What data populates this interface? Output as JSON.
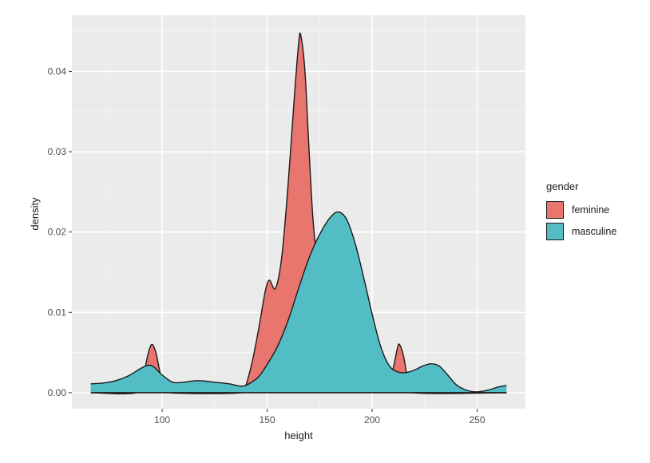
{
  "chart_data": {
    "type": "area",
    "xlabel": "height",
    "ylabel": "density",
    "xlim": [
      57,
      273
    ],
    "ylim": [
      -0.002,
      0.047
    ],
    "xticks": [
      100,
      150,
      200,
      250
    ],
    "yticks": [
      0.0,
      0.01,
      0.02,
      0.03,
      0.04
    ],
    "xtick_labels": [
      "100",
      "150",
      "200",
      "250"
    ],
    "ytick_labels": [
      "0.00",
      "0.01",
      "0.02",
      "0.03",
      "0.04"
    ],
    "grid": true,
    "legend": {
      "title": "gender",
      "position": "right"
    },
    "series": [
      {
        "name": "feminine",
        "color": "#E8766F",
        "points": [
          [
            66,
            0
          ],
          [
            88,
            0
          ],
          [
            91,
            0.002
          ],
          [
            93,
            0.0045
          ],
          [
            95,
            0.006
          ],
          [
            97,
            0.005
          ],
          [
            99,
            0.0025
          ],
          [
            101,
            0.0008
          ],
          [
            103,
            0
          ],
          [
            138,
            0
          ],
          [
            140,
            0.001
          ],
          [
            143,
            0.004
          ],
          [
            146,
            0.008
          ],
          [
            149,
            0.0125
          ],
          [
            151,
            0.014
          ],
          [
            154,
            0.013
          ],
          [
            157,
            0.017
          ],
          [
            160,
            0.026
          ],
          [
            163,
            0.037
          ],
          [
            165,
            0.0435
          ],
          [
            166,
            0.0445
          ],
          [
            168,
            0.04
          ],
          [
            170,
            0.03
          ],
          [
            172,
            0.021
          ],
          [
            175,
            0.014
          ],
          [
            178,
            0.01
          ],
          [
            182,
            0.007
          ],
          [
            187,
            0.0045
          ],
          [
            193,
            0.0025
          ],
          [
            200,
            0.001
          ],
          [
            207,
            0.0004
          ],
          [
            210,
            0.003
          ],
          [
            212,
            0.0055
          ],
          [
            213,
            0.006
          ],
          [
            215,
            0.0045
          ],
          [
            217,
            0.0015
          ],
          [
            219,
            0
          ],
          [
            264,
            0
          ]
        ]
      },
      {
        "name": "masculine",
        "color": "#53BDC5",
        "points": [
          [
            66,
            0.0011
          ],
          [
            72,
            0.0012
          ],
          [
            78,
            0.0015
          ],
          [
            84,
            0.0021
          ],
          [
            89,
            0.0029
          ],
          [
            93,
            0.0034
          ],
          [
            96,
            0.0032
          ],
          [
            100,
            0.0022
          ],
          [
            105,
            0.0013
          ],
          [
            110,
            0.0013
          ],
          [
            117,
            0.0015
          ],
          [
            125,
            0.0013
          ],
          [
            132,
            0.0011
          ],
          [
            138,
            0.0008
          ],
          [
            142,
            0.0012
          ],
          [
            146,
            0.002
          ],
          [
            150,
            0.0035
          ],
          [
            155,
            0.0058
          ],
          [
            160,
            0.009
          ],
          [
            165,
            0.013
          ],
          [
            170,
            0.0168
          ],
          [
            175,
            0.0197
          ],
          [
            180,
            0.0218
          ],
          [
            184,
            0.0225
          ],
          [
            188,
            0.0215
          ],
          [
            192,
            0.0185
          ],
          [
            196,
            0.0143
          ],
          [
            200,
            0.0098
          ],
          [
            204,
            0.0058
          ],
          [
            208,
            0.0034
          ],
          [
            212,
            0.0026
          ],
          [
            216,
            0.0025
          ],
          [
            220,
            0.0028
          ],
          [
            224,
            0.0033
          ],
          [
            228,
            0.0036
          ],
          [
            232,
            0.0033
          ],
          [
            236,
            0.0022
          ],
          [
            240,
            0.001
          ],
          [
            245,
            0.0003
          ],
          [
            250,
            0.0001
          ],
          [
            255,
            0.0003
          ],
          [
            260,
            0.0007
          ],
          [
            264,
            0.0009
          ]
        ]
      }
    ]
  }
}
